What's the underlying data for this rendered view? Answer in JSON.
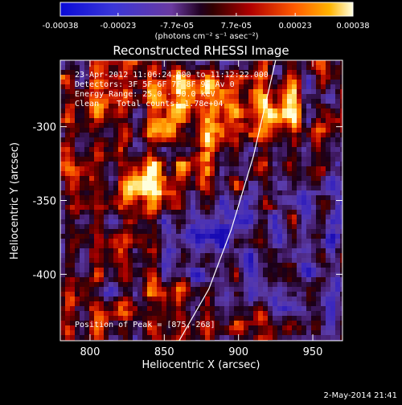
{
  "chart_data": {
    "type": "heatmap",
    "title": "Reconstructed RHESSI Image",
    "xlabel": "Heliocentric X (arcsec)",
    "ylabel": "Heliocentric Y (arcsec)",
    "xlim": [
      780,
      970
    ],
    "ylim": [
      -445,
      -255
    ],
    "x_ticks": [
      800,
      850,
      900,
      950
    ],
    "y_ticks": [
      -300,
      -350,
      -400
    ],
    "colorbar": {
      "range": [
        -0.00038,
        0.00038
      ],
      "ticks": [
        "-0.00038",
        "-0.00023",
        "-7.7e-05",
        "7.7e-05",
        "0.00023",
        "0.00038"
      ],
      "ticks_numeric": [
        -0.00038,
        -0.00023,
        -7.7e-05,
        7.7e-05,
        0.00023,
        0.00038
      ],
      "unit_label": "(photons cm⁻² s⁻¹ asec⁻²)"
    },
    "annotations": {
      "time_range": "23-Apr-2012 11:06:24.000 to 11:12:22.000",
      "detectors": "Detectors: 3F 5F 6F 7F 8F 9F Av 0",
      "energy_range": "Energy Range: 25.0 - 50.0 keV",
      "method": "Clean",
      "total_counts": "Total counts: 1.78e+04",
      "peak_position": "Position of Peak = [875,-268]"
    },
    "limb_line": {
      "points": [
        [
          860,
          -445
        ],
        [
          880,
          -410
        ],
        [
          895,
          -370
        ],
        [
          910,
          -320
        ],
        [
          925,
          -255
        ]
      ]
    },
    "peak": [
      875,
      -268
    ]
  },
  "footer_date": "2-May-2014 21:41"
}
